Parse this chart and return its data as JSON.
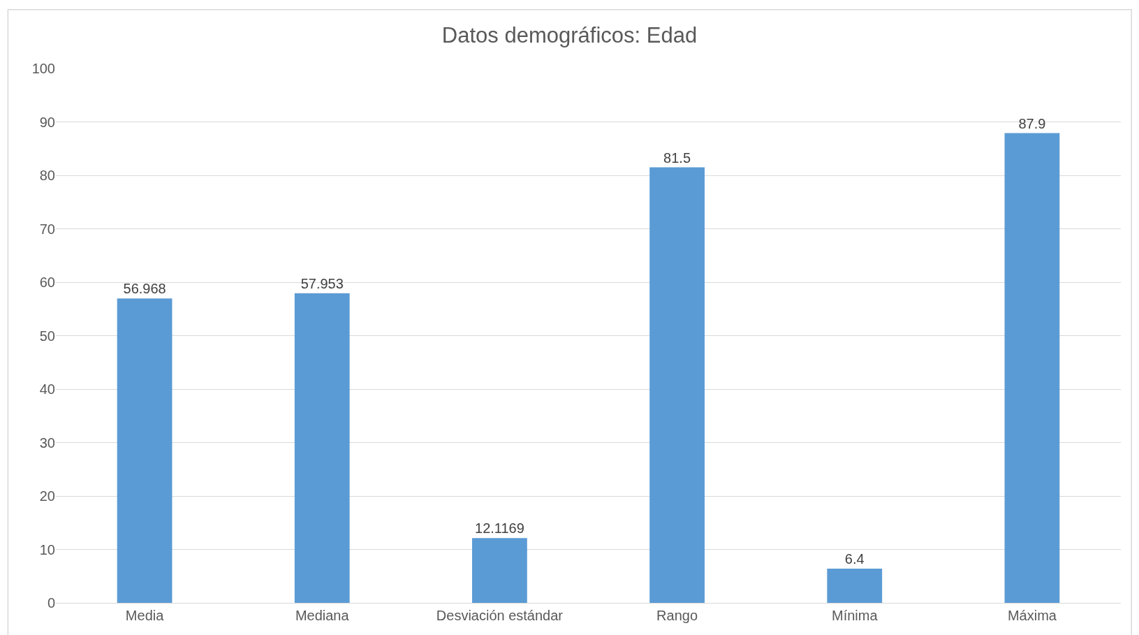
{
  "chart_data": {
    "type": "bar",
    "title": "Datos demográficos: Edad",
    "categories": [
      "Media",
      "Mediana",
      "Desviación estándar",
      "Rango",
      "Mínima",
      "Máxima"
    ],
    "values": [
      56.968,
      57.953,
      12.1169,
      81.5,
      6.4,
      87.9
    ],
    "color": "#5b9bd5",
    "ylim": [
      0,
      100
    ],
    "yticks": [
      0,
      10,
      20,
      30,
      40,
      50,
      60,
      70,
      80,
      90,
      100
    ],
    "grid": "y",
    "legend": false,
    "data_labels": true
  }
}
